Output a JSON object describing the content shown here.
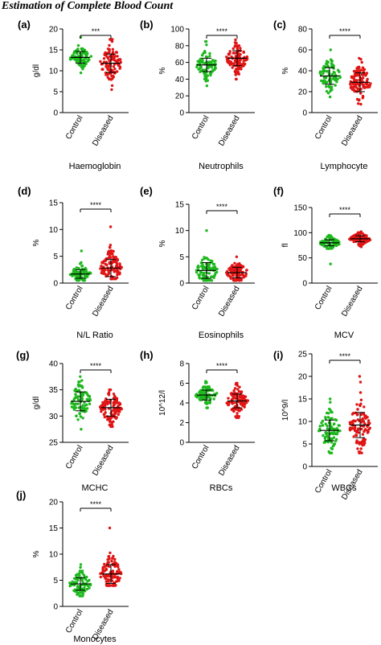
{
  "figure_title": "Estimation of Complete Blood Count",
  "colors": {
    "control": "#1db81d",
    "diseased": "#e01515",
    "axis": "#000000"
  },
  "chart_data": [
    {
      "type": "scatter",
      "panel": "(a)",
      "title": "Haemoglobin",
      "ylabel": "g/dl",
      "ylim": [
        0,
        20
      ],
      "yticks": [
        0,
        5,
        10,
        15,
        20
      ],
      "categories": [
        "Control",
        "Diseased"
      ],
      "significance": "***",
      "series": [
        {
          "name": "Control",
          "mean": 13.2,
          "sd": 1.4,
          "n": 90,
          "min": 9.5,
          "max": 18
        },
        {
          "name": "Diseased",
          "mean": 11.8,
          "sd": 2.2,
          "n": 110,
          "min": 5.5,
          "max": 17.5
        }
      ]
    },
    {
      "type": "scatter",
      "panel": "(b)",
      "title": "Neutrophils",
      "ylabel": "%",
      "ylim": [
        0,
        100
      ],
      "yticks": [
        0,
        20,
        40,
        60,
        80,
        100
      ],
      "categories": [
        "Control",
        "Diseased"
      ],
      "significance": "****",
      "series": [
        {
          "name": "Control",
          "mean": 57,
          "sd": 8,
          "n": 90,
          "min": 32,
          "max": 85
        },
        {
          "name": "Diseased",
          "mean": 65,
          "sd": 9,
          "n": 110,
          "min": 40,
          "max": 87
        }
      ]
    },
    {
      "type": "scatter",
      "panel": "(c)",
      "title": "Lymphocyte",
      "ylabel": "%",
      "ylim": [
        0,
        80
      ],
      "yticks": [
        0,
        20,
        40,
        60,
        80
      ],
      "categories": [
        "Control",
        "Diseased"
      ],
      "significance": "****",
      "series": [
        {
          "name": "Control",
          "mean": 35,
          "sd": 8,
          "n": 90,
          "min": 15,
          "max": 60
        },
        {
          "name": "Diseased",
          "mean": 29,
          "sd": 9,
          "n": 110,
          "min": 8,
          "max": 52
        }
      ]
    },
    {
      "type": "scatter",
      "panel": "(d)",
      "title": "N/L Ratio",
      "ylabel": "%",
      "ylim": [
        0,
        15
      ],
      "yticks": [
        0,
        5,
        10,
        15
      ],
      "categories": [
        "Control",
        "Diseased"
      ],
      "significance": "****",
      "series": [
        {
          "name": "Control",
          "mean": 1.7,
          "sd": 0.8,
          "n": 90,
          "min": 0.5,
          "max": 6
        },
        {
          "name": "Diseased",
          "mean": 2.8,
          "sd": 1.6,
          "n": 110,
          "min": 0.8,
          "max": 10.5
        }
      ]
    },
    {
      "type": "scatter",
      "panel": "(e)",
      "title": "Eosinophils",
      "ylabel": "%",
      "ylim": [
        0,
        15
      ],
      "yticks": [
        0,
        5,
        10,
        15
      ],
      "categories": [
        "Control",
        "Diseased"
      ],
      "significance": "****",
      "series": [
        {
          "name": "Control",
          "mean": 2.4,
          "sd": 1.5,
          "n": 90,
          "min": 0.5,
          "max": 10
        },
        {
          "name": "Diseased",
          "mean": 2.0,
          "sd": 1.0,
          "n": 110,
          "min": 0.5,
          "max": 5
        }
      ]
    },
    {
      "type": "scatter",
      "panel": "(f)",
      "title": "MCV",
      "ylabel": "fl",
      "ylim": [
        0,
        150
      ],
      "yticks": [
        0,
        50,
        100,
        150
      ],
      "categories": [
        "Control",
        "Diseased"
      ],
      "significance": "****",
      "series": [
        {
          "name": "Control",
          "mean": 80,
          "sd": 6,
          "n": 90,
          "min": 38,
          "max": 95
        },
        {
          "name": "Diseased",
          "mean": 88,
          "sd": 6,
          "n": 110,
          "min": 72,
          "max": 102
        }
      ]
    },
    {
      "type": "scatter",
      "panel": "(g)",
      "title": "MCHC",
      "ylabel": "g/dl",
      "ylim": [
        25,
        40
      ],
      "yticks": [
        25,
        30,
        35,
        40
      ],
      "categories": [
        "Control",
        "Diseased"
      ],
      "significance": "****",
      "series": [
        {
          "name": "Control",
          "mean": 32.8,
          "sd": 1.8,
          "n": 90,
          "min": 27.5,
          "max": 37.5
        },
        {
          "name": "Diseased",
          "mean": 31.6,
          "sd": 1.6,
          "n": 110,
          "min": 28,
          "max": 35
        }
      ]
    },
    {
      "type": "scatter",
      "panel": "(h)",
      "title": "RBCs",
      "ylabel": "10^12/l",
      "ylim": [
        0,
        8
      ],
      "yticks": [
        0,
        2,
        4,
        6,
        8
      ],
      "categories": [
        "Control",
        "Diseased"
      ],
      "significance": "****",
      "series": [
        {
          "name": "Control",
          "mean": 4.8,
          "sd": 0.5,
          "n": 90,
          "min": 3.5,
          "max": 6.2
        },
        {
          "name": "Diseased",
          "mean": 4.2,
          "sd": 0.7,
          "n": 110,
          "min": 2.5,
          "max": 6.0
        }
      ]
    },
    {
      "type": "scatter",
      "panel": "(i)",
      "title": "WBCs",
      "ylabel": "10^9/l",
      "ylim": [
        0,
        25
      ],
      "yticks": [
        0,
        5,
        10,
        15,
        20,
        25
      ],
      "categories": [
        "Control",
        "Diseased"
      ],
      "significance": "****",
      "series": [
        {
          "name": "Control",
          "mean": 8.0,
          "sd": 2.3,
          "n": 90,
          "min": 3,
          "max": 15
        },
        {
          "name": "Diseased",
          "mean": 9.2,
          "sd": 2.8,
          "n": 110,
          "min": 3,
          "max": 20
        }
      ]
    },
    {
      "type": "scatter",
      "panel": "(j)",
      "title": "Monocytes",
      "ylabel": "%",
      "ylim": [
        0,
        20
      ],
      "yticks": [
        0,
        5,
        10,
        15,
        20
      ],
      "categories": [
        "Control",
        "Diseased"
      ],
      "significance": "****",
      "series": [
        {
          "name": "Control",
          "mean": 4.3,
          "sd": 1.2,
          "n": 90,
          "min": 2,
          "max": 8
        },
        {
          "name": "Diseased",
          "mean": 6.2,
          "sd": 1.8,
          "n": 110,
          "min": 4,
          "max": 15
        }
      ]
    }
  ]
}
